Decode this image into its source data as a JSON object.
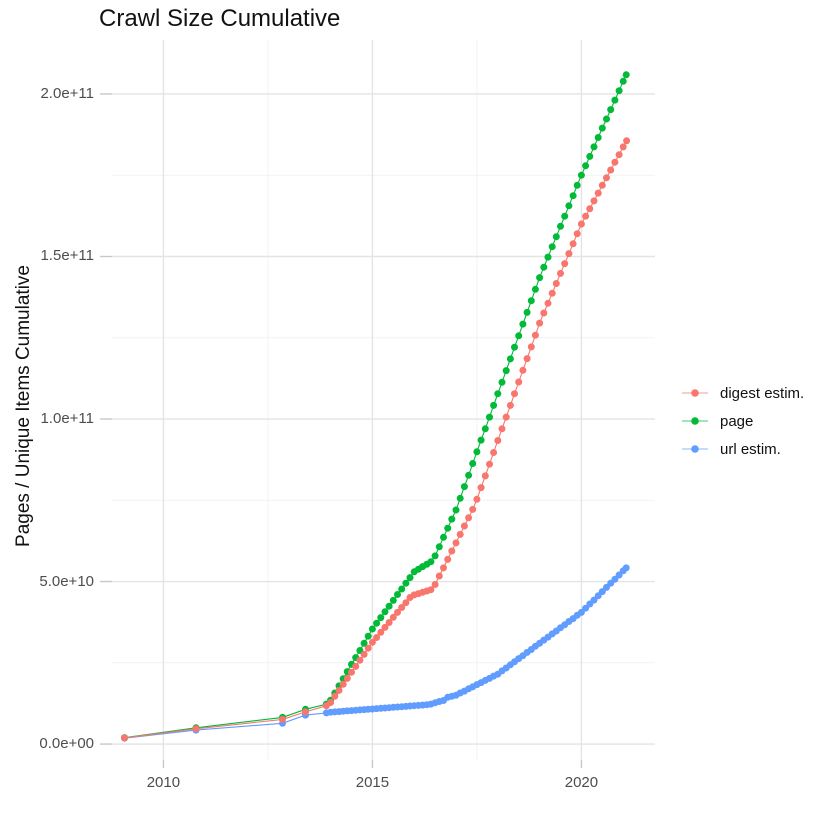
{
  "title": "Crawl Size Cumulative",
  "y_axis": {
    "label": "Pages / Unique Items Cumulative",
    "ticks": [
      {
        "label": "0.0e+00",
        "value_billions": 0
      },
      {
        "label": "5.0e+10",
        "value_billions": 50
      },
      {
        "label": "1.0e+11",
        "value_billions": 100
      },
      {
        "label": "1.5e+11",
        "value_billions": 150
      },
      {
        "label": "2.0e+11",
        "value_billions": 200
      }
    ],
    "minor_gridlines_billions": [
      25,
      75,
      125,
      175
    ]
  },
  "x_axis": {
    "ticks": [
      {
        "label": "2010",
        "value_year": 2010
      },
      {
        "label": "2015",
        "value_year": 2015
      },
      {
        "label": "2020",
        "value_year": 2020
      }
    ],
    "minor_gridlines_years": [
      2012.5,
      2017.5
    ]
  },
  "legend": {
    "items": [
      {
        "id": "digest",
        "label": "digest estim.",
        "color": "#F8766D"
      },
      {
        "id": "page",
        "label": "page",
        "color": "#00BA38"
      },
      {
        "id": "url",
        "label": "url estim.",
        "color": "#619CFF"
      }
    ]
  },
  "colors": {
    "digest": "#F8766D",
    "page": "#00BA38",
    "url": "#619CFF",
    "grid_major": "#e4e4e4",
    "grid_minor": "#f2f2f2",
    "tick_mark": "#c8c8c8",
    "tick_text": "#4d4d4d",
    "text": "#111111"
  },
  "chart_data": {
    "type": "scatter",
    "title": "Crawl Size Cumulative",
    "xlabel": "",
    "ylabel": "Pages / Unique Items Cumulative",
    "x_unit": "year (decimal)",
    "y_unit": "items, stored in billions (1e9)",
    "xlim": [
      2008.77,
      2021.76
    ],
    "ylim_billions": [
      -4.9,
      216.6
    ],
    "grid": true,
    "legend_position": "right",
    "draw_order": [
      "url",
      "page",
      "digest"
    ],
    "series": [
      {
        "name": "url estim.",
        "id": "url",
        "color": "#619CFF",
        "points_year_billions": [
          [
            2009.07,
            1.8
          ],
          [
            2010.78,
            4.3
          ],
          [
            2012.85,
            6.4
          ],
          [
            2013.4,
            8.9
          ],
          [
            2013.9,
            9.6
          ],
          [
            2014.0,
            9.8
          ],
          [
            2014.1,
            9.9
          ],
          [
            2014.2,
            10.0
          ],
          [
            2014.3,
            10.1
          ],
          [
            2014.4,
            10.2
          ],
          [
            2014.5,
            10.3
          ],
          [
            2014.6,
            10.4
          ],
          [
            2014.7,
            10.5
          ],
          [
            2014.8,
            10.6
          ],
          [
            2014.9,
            10.7
          ],
          [
            2015.0,
            10.8
          ],
          [
            2015.1,
            10.9
          ],
          [
            2015.2,
            11.0
          ],
          [
            2015.3,
            11.1
          ],
          [
            2015.4,
            11.2
          ],
          [
            2015.5,
            11.3
          ],
          [
            2015.6,
            11.4
          ],
          [
            2015.7,
            11.5
          ],
          [
            2015.8,
            11.6
          ],
          [
            2015.9,
            11.7
          ],
          [
            2016.0,
            11.8
          ],
          [
            2016.1,
            11.9
          ],
          [
            2016.2,
            12.0
          ],
          [
            2016.3,
            12.1
          ],
          [
            2016.4,
            12.3
          ],
          [
            2016.5,
            12.7
          ],
          [
            2016.6,
            13.1
          ],
          [
            2016.7,
            13.4
          ],
          [
            2016.8,
            14.4
          ],
          [
            2016.9,
            14.7
          ],
          [
            2017.0,
            15.0
          ],
          [
            2017.1,
            15.7
          ],
          [
            2017.2,
            16.3
          ],
          [
            2017.3,
            17.0
          ],
          [
            2017.4,
            17.6
          ],
          [
            2017.5,
            18.3
          ],
          [
            2017.6,
            18.9
          ],
          [
            2017.7,
            19.6
          ],
          [
            2017.8,
            20.2
          ],
          [
            2017.9,
            20.9
          ],
          [
            2018.0,
            21.5
          ],
          [
            2018.1,
            22.5
          ],
          [
            2018.2,
            23.4
          ],
          [
            2018.3,
            24.4
          ],
          [
            2018.4,
            25.3
          ],
          [
            2018.5,
            26.3
          ],
          [
            2018.6,
            27.2
          ],
          [
            2018.7,
            28.2
          ],
          [
            2018.8,
            29.1
          ],
          [
            2018.9,
            30.1
          ],
          [
            2019.0,
            31.0
          ],
          [
            2019.1,
            32.0
          ],
          [
            2019.2,
            32.9
          ],
          [
            2019.3,
            33.9
          ],
          [
            2019.4,
            34.8
          ],
          [
            2019.5,
            35.8
          ],
          [
            2019.6,
            36.7
          ],
          [
            2019.7,
            37.7
          ],
          [
            2019.8,
            38.6
          ],
          [
            2019.9,
            39.6
          ],
          [
            2020.0,
            40.5
          ],
          [
            2020.1,
            41.8
          ],
          [
            2020.2,
            43.1
          ],
          [
            2020.3,
            44.3
          ],
          [
            2020.4,
            45.6
          ],
          [
            2020.5,
            46.9
          ],
          [
            2020.6,
            48.2
          ],
          [
            2020.7,
            49.5
          ],
          [
            2020.8,
            50.7
          ],
          [
            2020.9,
            52.0
          ],
          [
            2021.0,
            53.3
          ],
          [
            2021.07,
            54.2
          ]
        ]
      },
      {
        "name": "page",
        "id": "page",
        "color": "#00BA38",
        "points_year_billions": [
          [
            2009.07,
            2.0
          ],
          [
            2010.78,
            5.0
          ],
          [
            2012.85,
            8.2
          ],
          [
            2013.4,
            10.7
          ],
          [
            2013.9,
            12.3
          ],
          [
            2014.0,
            13.5
          ],
          [
            2014.1,
            15.7
          ],
          [
            2014.2,
            17.9
          ],
          [
            2014.3,
            20.1
          ],
          [
            2014.4,
            22.3
          ],
          [
            2014.5,
            24.5
          ],
          [
            2014.6,
            26.6
          ],
          [
            2014.7,
            28.8
          ],
          [
            2014.8,
            31.0
          ],
          [
            2014.9,
            33.2
          ],
          [
            2015.0,
            35.4
          ],
          [
            2015.1,
            37.2
          ],
          [
            2015.2,
            38.9
          ],
          [
            2015.3,
            40.7
          ],
          [
            2015.4,
            42.4
          ],
          [
            2015.5,
            44.2
          ],
          [
            2015.6,
            46.0
          ],
          [
            2015.7,
            47.7
          ],
          [
            2015.8,
            49.5
          ],
          [
            2015.9,
            51.2
          ],
          [
            2016.0,
            53.0
          ],
          [
            2016.1,
            53.8
          ],
          [
            2016.2,
            54.6
          ],
          [
            2016.3,
            55.3
          ],
          [
            2016.4,
            56.1
          ],
          [
            2016.5,
            57.9
          ],
          [
            2016.6,
            60.7
          ],
          [
            2016.7,
            63.6
          ],
          [
            2016.8,
            66.4
          ],
          [
            2016.9,
            69.2
          ],
          [
            2017.0,
            72.0
          ],
          [
            2017.1,
            75.6
          ],
          [
            2017.2,
            79.2
          ],
          [
            2017.3,
            82.7
          ],
          [
            2017.4,
            86.3
          ],
          [
            2017.5,
            89.9
          ],
          [
            2017.6,
            93.5
          ],
          [
            2017.7,
            97.0
          ],
          [
            2017.8,
            100.6
          ],
          [
            2017.9,
            104.2
          ],
          [
            2018.0,
            107.8
          ],
          [
            2018.1,
            111.3
          ],
          [
            2018.2,
            114.9
          ],
          [
            2018.3,
            118.5
          ],
          [
            2018.4,
            122.1
          ],
          [
            2018.5,
            125.6
          ],
          [
            2018.6,
            129.2
          ],
          [
            2018.7,
            132.8
          ],
          [
            2018.8,
            136.4
          ],
          [
            2018.9,
            139.9
          ],
          [
            2019.0,
            143.5
          ],
          [
            2019.1,
            146.7
          ],
          [
            2019.2,
            149.8
          ],
          [
            2019.3,
            153.0
          ],
          [
            2019.4,
            156.1
          ],
          [
            2019.5,
            159.3
          ],
          [
            2019.6,
            162.4
          ],
          [
            2019.7,
            165.6
          ],
          [
            2019.8,
            168.7
          ],
          [
            2019.9,
            171.9
          ],
          [
            2020.0,
            175.0
          ],
          [
            2020.1,
            177.9
          ],
          [
            2020.2,
            180.8
          ],
          [
            2020.3,
            183.7
          ],
          [
            2020.4,
            186.6
          ],
          [
            2020.5,
            189.5
          ],
          [
            2020.6,
            192.3
          ],
          [
            2020.7,
            195.2
          ],
          [
            2020.8,
            198.1
          ],
          [
            2020.9,
            201.0
          ],
          [
            2021.0,
            203.9
          ],
          [
            2021.07,
            205.9
          ]
        ]
      },
      {
        "name": "digest estim.",
        "id": "digest",
        "color": "#F8766D",
        "points_year_billions": [
          [
            2009.07,
            1.9
          ],
          [
            2010.78,
            4.7
          ],
          [
            2012.85,
            7.6
          ],
          [
            2013.4,
            9.9
          ],
          [
            2013.9,
            11.8
          ],
          [
            2014.0,
            12.8
          ],
          [
            2014.1,
            14.7
          ],
          [
            2014.2,
            16.5
          ],
          [
            2014.3,
            18.4
          ],
          [
            2014.4,
            20.2
          ],
          [
            2014.5,
            22.1
          ],
          [
            2014.6,
            23.9
          ],
          [
            2014.7,
            25.8
          ],
          [
            2014.8,
            27.6
          ],
          [
            2014.9,
            29.5
          ],
          [
            2015.0,
            31.3
          ],
          [
            2015.1,
            32.8
          ],
          [
            2015.2,
            34.4
          ],
          [
            2015.3,
            35.9
          ],
          [
            2015.4,
            37.4
          ],
          [
            2015.5,
            39.0
          ],
          [
            2015.6,
            40.5
          ],
          [
            2015.7,
            42.0
          ],
          [
            2015.8,
            43.5
          ],
          [
            2015.9,
            45.1
          ],
          [
            2016.0,
            45.9
          ],
          [
            2016.1,
            46.3
          ],
          [
            2016.2,
            46.7
          ],
          [
            2016.3,
            47.1
          ],
          [
            2016.4,
            47.5
          ],
          [
            2016.5,
            49.1
          ],
          [
            2016.6,
            51.7
          ],
          [
            2016.7,
            54.2
          ],
          [
            2016.8,
            56.8
          ],
          [
            2016.9,
            59.4
          ],
          [
            2017.0,
            61.9
          ],
          [
            2017.1,
            64.5
          ],
          [
            2017.2,
            67.1
          ],
          [
            2017.3,
            69.6
          ],
          [
            2017.4,
            72.2
          ],
          [
            2017.5,
            75.3
          ],
          [
            2017.6,
            78.9
          ],
          [
            2017.7,
            82.5
          ],
          [
            2017.8,
            86.1
          ],
          [
            2017.9,
            89.7
          ],
          [
            2018.0,
            93.4
          ],
          [
            2018.1,
            97.0
          ],
          [
            2018.2,
            100.6
          ],
          [
            2018.3,
            104.2
          ],
          [
            2018.4,
            107.8
          ],
          [
            2018.5,
            111.4
          ],
          [
            2018.6,
            115.0
          ],
          [
            2018.7,
            118.6
          ],
          [
            2018.8,
            122.2
          ],
          [
            2018.9,
            125.8
          ],
          [
            2019.0,
            129.5
          ],
          [
            2019.1,
            132.6
          ],
          [
            2019.2,
            135.6
          ],
          [
            2019.3,
            138.7
          ],
          [
            2019.4,
            141.7
          ],
          [
            2019.5,
            144.8
          ],
          [
            2019.6,
            147.8
          ],
          [
            2019.7,
            150.9
          ],
          [
            2019.8,
            153.9
          ],
          [
            2019.9,
            157.0
          ],
          [
            2020.0,
            160.0
          ],
          [
            2020.1,
            162.4
          ],
          [
            2020.2,
            164.7
          ],
          [
            2020.3,
            167.1
          ],
          [
            2020.4,
            169.5
          ],
          [
            2020.5,
            171.9
          ],
          [
            2020.6,
            174.2
          ],
          [
            2020.7,
            176.6
          ],
          [
            2020.8,
            179.0
          ],
          [
            2020.9,
            181.3
          ],
          [
            2021.0,
            183.7
          ],
          [
            2021.08,
            185.6
          ]
        ]
      }
    ]
  }
}
